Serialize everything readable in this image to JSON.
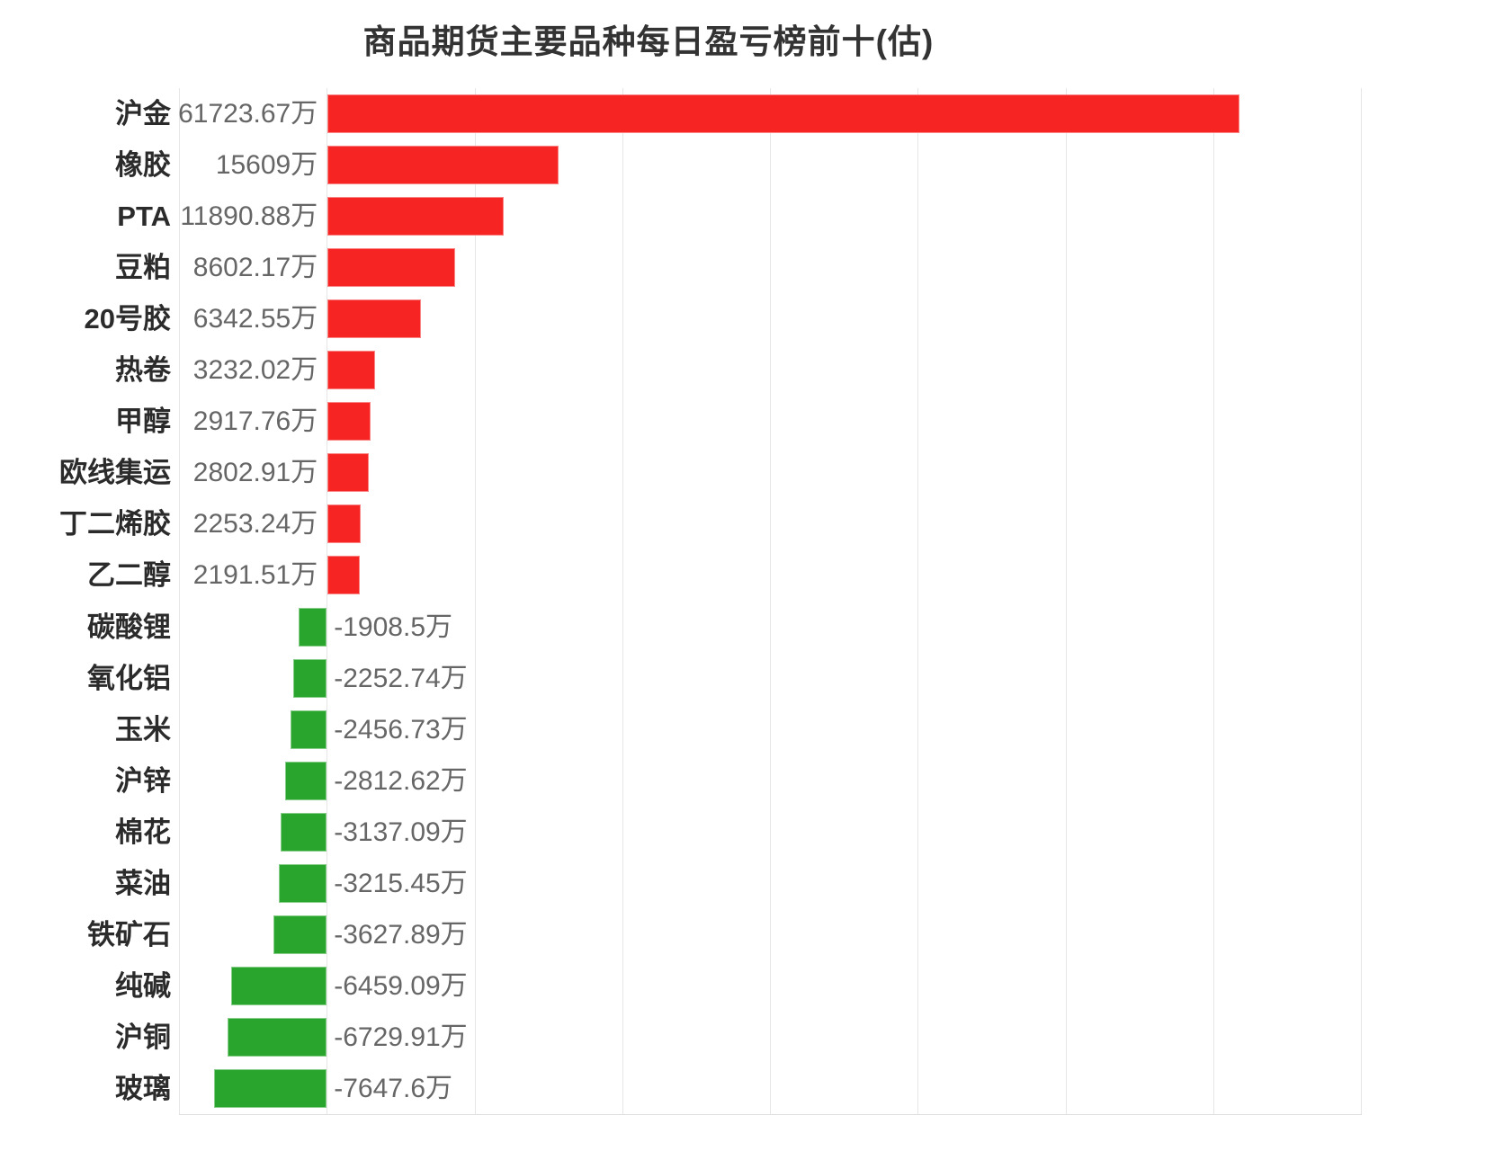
{
  "chart_data": {
    "type": "bar",
    "orientation": "horizontal",
    "title": "商品期货主要品种每日盈亏榜前十(估)",
    "unit": "万",
    "categories": [
      "沪金",
      "橡胶",
      "PTA",
      "豆粕",
      "20号胶",
      "热卷",
      "甲醇",
      "欧线集运",
      "丁二烯胶",
      "乙二醇",
      "碳酸锂",
      "氧化铝",
      "玉米",
      "沪锌",
      "棉花",
      "菜油",
      "铁矿石",
      "纯碱",
      "沪铜",
      "玻璃"
    ],
    "values": [
      61723.67,
      15609,
      11890.88,
      8602.17,
      6342.55,
      3232.02,
      2917.76,
      2802.91,
      2253.24,
      2191.51,
      -1908.5,
      -2252.74,
      -2456.73,
      -2812.62,
      -3137.09,
      -3215.45,
      -3627.89,
      -6459.09,
      -6729.91,
      -7647.6
    ],
    "value_labels": [
      "61723.67万",
      "15609万",
      "11890.88万",
      "8602.17万",
      "6342.55万",
      "3232.02万",
      "2917.76万",
      "2802.91万",
      "2253.24万",
      "2191.51万",
      "-1908.5万",
      "-2252.74万",
      "-2456.73万",
      "-2812.62万",
      "-3137.09万",
      "-3215.45万",
      "-3627.89万",
      "-6459.09万",
      "-6729.91万",
      "-7647.6万"
    ],
    "axis": {
      "xmin": -10000,
      "xmax": 70000,
      "step": 10000,
      "grid": true,
      "tick_labels_visible": false
    },
    "legend": null,
    "colors": {
      "positive_bar": "#f62423",
      "negative_bar": "#29a42d",
      "category_label": "#2b2b2b",
      "value_label": "#666666",
      "title": "#333333",
      "gridline": "#e6e6e6",
      "axisline": "#dedede",
      "background": "#ffffff"
    }
  }
}
